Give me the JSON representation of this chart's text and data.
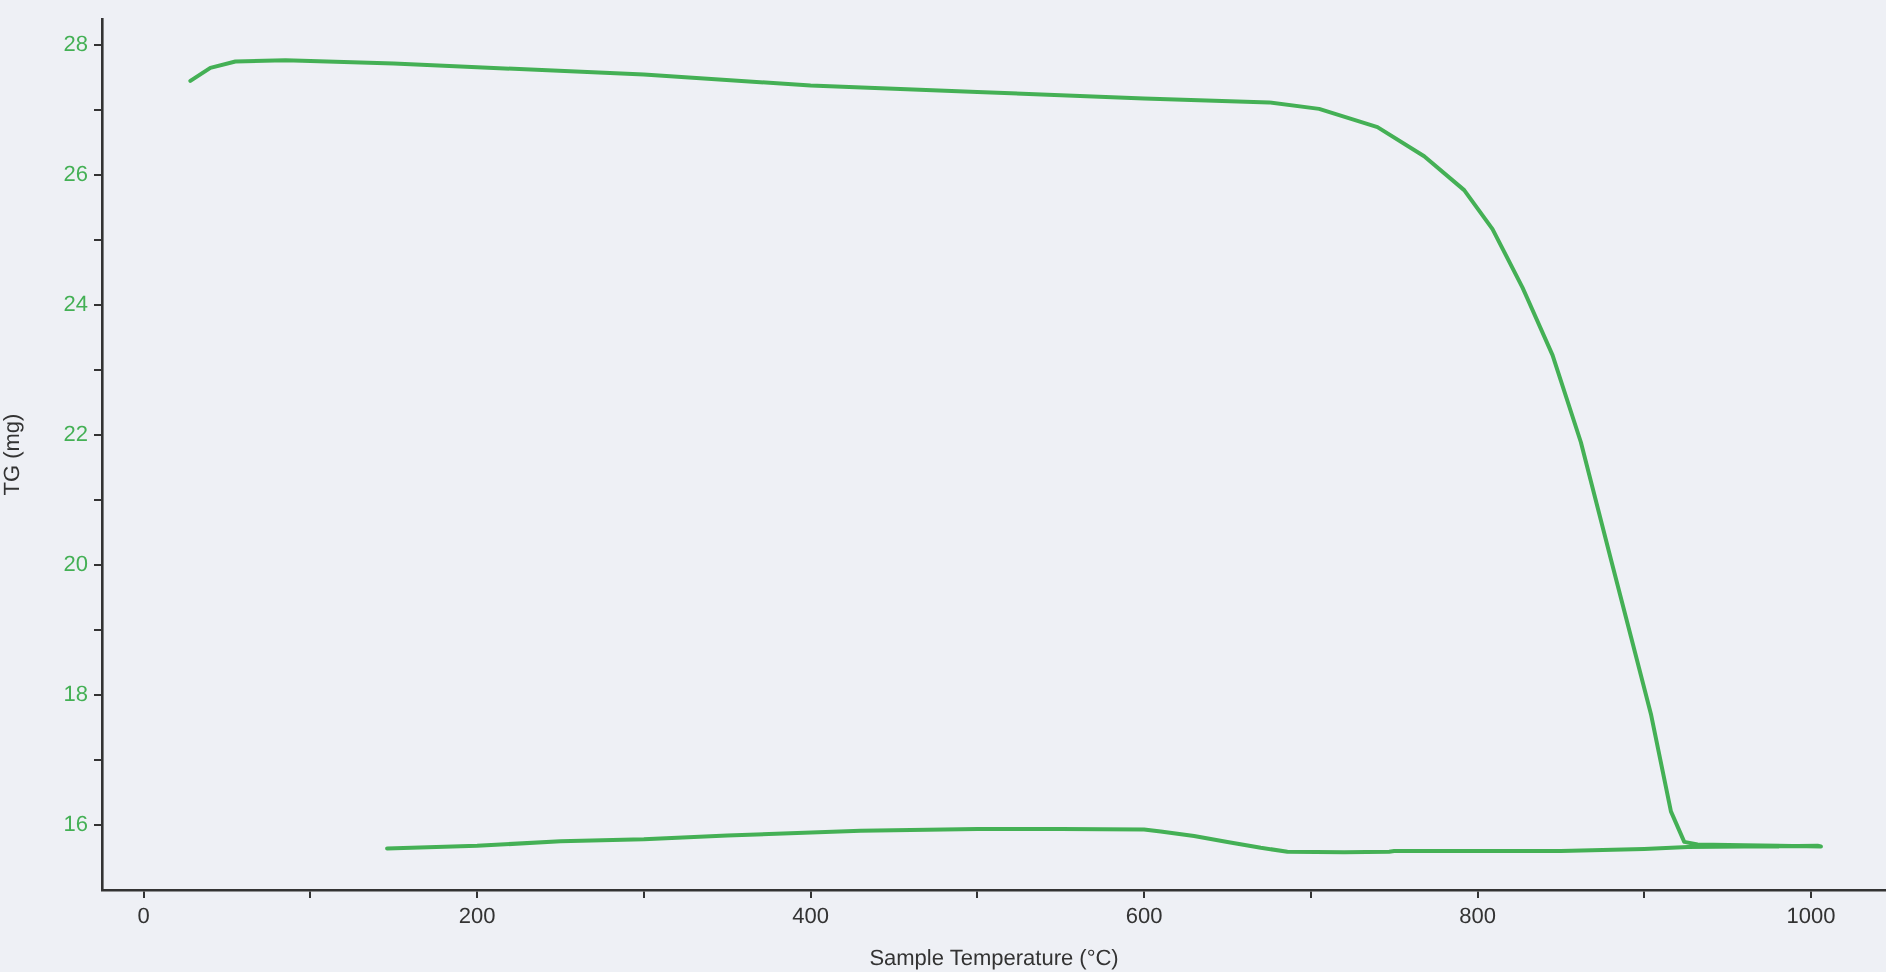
{
  "chart_data": {
    "type": "line",
    "xlabel": "Sample Temperature (°C)",
    "ylabel": "TG (mg)",
    "x": [
      28,
      40,
      55,
      85,
      150,
      200,
      300,
      400,
      500,
      600,
      675,
      705,
      740,
      768,
      792,
      809,
      827,
      845,
      862,
      880,
      892,
      904,
      916,
      924,
      932,
      960,
      1006,
      1004,
      960,
      926,
      900,
      850,
      800,
      760,
      750,
      747,
      720,
      686,
      670,
      650,
      630,
      610,
      600,
      550,
      500,
      430,
      350,
      300,
      250,
      200,
      146
    ],
    "series": [
      {
        "color": "#44b055",
        "values": [
          27.45,
          27.65,
          27.75,
          27.77,
          27.72,
          27.66,
          27.55,
          27.38,
          27.28,
          27.18,
          27.12,
          27.02,
          26.74,
          26.29,
          25.77,
          25.17,
          24.27,
          23.23,
          21.89,
          20.09,
          18.9,
          17.71,
          16.21,
          15.74,
          15.7,
          15.69,
          15.67,
          15.68,
          15.67,
          15.66,
          15.63,
          15.6,
          15.6,
          15.6,
          15.6,
          15.59,
          15.58,
          15.59,
          15.65,
          15.74,
          15.83,
          15.9,
          15.93,
          15.94,
          15.94,
          15.91,
          15.84,
          15.78,
          15.75,
          15.68,
          15.64
        ]
      }
    ],
    "xlim": [
      -25,
      1045
    ],
    "ylim": [
      15,
      28.4
    ],
    "xticks": [
      0,
      {
        "value": 100,
        "label": null
      },
      200,
      {
        "value": 300,
        "label": null
      },
      400,
      {
        "value": 500,
        "label": null
      },
      600,
      {
        "value": 700,
        "label": null
      },
      800,
      {
        "value": 900,
        "label": null
      },
      1000
    ],
    "yticks": [
      16,
      {
        "value": 17,
        "label": null
      },
      18,
      {
        "value": 19,
        "label": null
      },
      20,
      {
        "value": 21,
        "label": null
      },
      22,
      {
        "value": 23,
        "label": null
      },
      24,
      {
        "value": 25,
        "label": null
      },
      26,
      {
        "value": 27,
        "label": null
      },
      28
    ],
    "marker": "none",
    "line_style": "solid"
  }
}
